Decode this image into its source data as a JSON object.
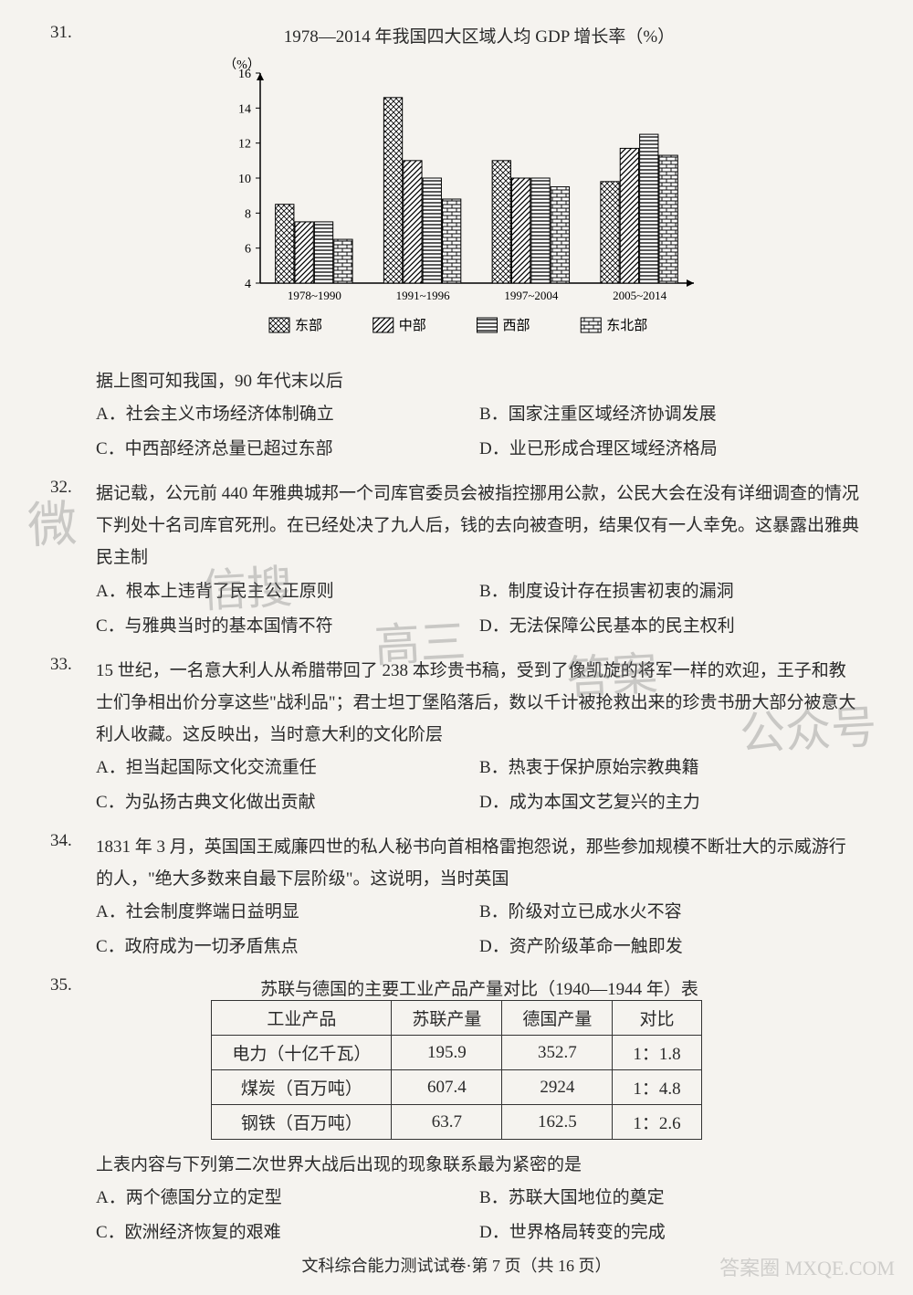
{
  "q31": {
    "number": "31.",
    "chart_title": "1978—2014 年我国四大区域人均 GDP 增长率（%）",
    "chart": {
      "type": "bar",
      "ylabel": "（%）",
      "ylim": [
        4,
        16
      ],
      "ytick_step": 2,
      "yticks": [
        4,
        6,
        8,
        10,
        12,
        14,
        16
      ],
      "categories": [
        "1978~1990",
        "1991~1996",
        "1997~2004",
        "2005~2014"
      ],
      "series": [
        {
          "name": "东部",
          "pattern": "crosshatch",
          "values": [
            8.5,
            14.6,
            11,
            9.8
          ]
        },
        {
          "name": "中部",
          "pattern": "diagonal",
          "values": [
            7.5,
            11,
            10,
            11.7
          ]
        },
        {
          "name": "西部",
          "pattern": "horizontal",
          "values": [
            7.5,
            10,
            10,
            12.5
          ]
        },
        {
          "name": "东北部",
          "pattern": "brick",
          "values": [
            6.5,
            8.8,
            9.5,
            11.3
          ]
        }
      ],
      "bar_width": 0.8,
      "background_color": "#f5f3ef",
      "axis_color": "#000000",
      "label_fontsize": 14
    },
    "stem": "据上图可知我国，90 年代末以后",
    "options": {
      "A": "A．社会主义市场经济体制确立",
      "B": "B．国家注重区域经济协调发展",
      "C": "C．中西部经济总量已超过东部",
      "D": "D．业已形成合理区域经济格局"
    }
  },
  "q32": {
    "number": "32.",
    "stem": "据记载，公元前 440 年雅典城邦一个司库官委员会被指控挪用公款，公民大会在没有详细调查的情况下判处十名司库官死刑。在已经处决了九人后，钱的去向被查明，结果仅有一人幸免。这暴露出雅典民主制",
    "options": {
      "A": "A．根本上违背了民主公正原则",
      "B": "B．制度设计存在损害初衷的漏洞",
      "C": "C．与雅典当时的基本国情不符",
      "D": "D．无法保障公民基本的民主权利"
    }
  },
  "q33": {
    "number": "33.",
    "stem": "15 世纪，一名意大利人从希腊带回了 238 本珍贵书稿，受到了像凯旋的将军一样的欢迎，王子和教士们争相出价分享这些\"战利品\"；君士坦丁堡陷落后，数以千计被抢救出来的珍贵书册大部分被意大利人收藏。这反映出，当时意大利的文化阶层",
    "options": {
      "A": "A．担当起国际文化交流重任",
      "B": "B．热衷于保护原始宗教典籍",
      "C": "C．为弘扬古典文化做出贡献",
      "D": "D．成为本国文艺复兴的主力"
    }
  },
  "q34": {
    "number": "34.",
    "stem": "1831 年 3 月，英国国王威廉四世的私人秘书向首相格雷抱怨说，那些参加规模不断壮大的示威游行的人，\"绝大多数来自最下层阶级\"。这说明，当时英国",
    "options": {
      "A": "A．社会制度弊端日益明显",
      "B": "B．阶级对立已成水火不容",
      "C": "C．政府成为一切矛盾焦点",
      "D": "D．资产阶级革命一触即发"
    }
  },
  "q35": {
    "number": "35.",
    "table_title": "苏联与德国的主要工业产品产量对比（1940—1944 年）表",
    "table": {
      "columns": [
        "工业产品",
        "苏联产量",
        "德国产量",
        "对比"
      ],
      "rows": [
        [
          "电力（十亿千瓦）",
          "195.9",
          "352.7",
          "1：1.8"
        ],
        [
          "煤炭（百万吨）",
          "607.4",
          "2924",
          "1：4.8"
        ],
        [
          "钢铁（百万吨）",
          "63.7",
          "162.5",
          "1：2.6"
        ]
      ],
      "border_color": "#333333",
      "cell_padding": 5
    },
    "stem": "上表内容与下列第二次世界大战后出现的现象联系最为紧密的是",
    "options": {
      "A": "A．两个德国分立的定型",
      "B": "B．苏联大国地位的奠定",
      "C": "C．欧洲经济恢复的艰难",
      "D": "D．世界格局转变的完成"
    }
  },
  "footer": "文科综合能力测试试卷·第 7 页（共 16 页）",
  "watermarks": {
    "w1": "微",
    "w2": "信搜",
    "w3": "高三",
    "w4": "答案",
    "w5": "公众号"
  },
  "corner": "答案圈 MXQE.COM"
}
